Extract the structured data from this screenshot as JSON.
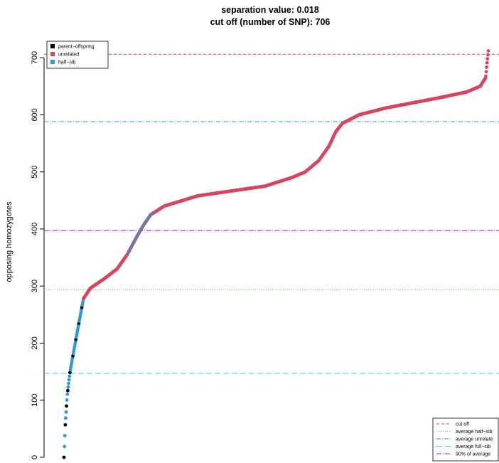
{
  "chart_data": {
    "type": "scatter",
    "title": "separation value: 0.018",
    "subtitle": "cut off (number of SNP): 706",
    "xlabel": "",
    "ylabel": "opposing homozygotes",
    "ylim": [
      -10,
      745
    ],
    "yticks": [
      0,
      100,
      200,
      300,
      400,
      500,
      600,
      700
    ],
    "n_points": 1000,
    "curve": [
      [
        1,
        0
      ],
      [
        3,
        60
      ],
      [
        6,
        110
      ],
      [
        10,
        150
      ],
      [
        20,
        215
      ],
      [
        30,
        278
      ],
      [
        40,
        296
      ],
      [
        60,
        312
      ],
      [
        80,
        330
      ],
      [
        95,
        355
      ],
      [
        110,
        388
      ],
      [
        120,
        408
      ],
      [
        130,
        425
      ],
      [
        150,
        440
      ],
      [
        200,
        458
      ],
      [
        300,
        475
      ],
      [
        340,
        490
      ],
      [
        360,
        500
      ],
      [
        380,
        520
      ],
      [
        395,
        545
      ],
      [
        405,
        570
      ],
      [
        415,
        585
      ],
      [
        440,
        600
      ],
      [
        480,
        612
      ],
      [
        560,
        630
      ],
      [
        600,
        640
      ],
      [
        620,
        650
      ],
      [
        628,
        665
      ],
      [
        630,
        690
      ],
      [
        632,
        712
      ]
    ],
    "categories": {
      "parent-offspring": {
        "color": "#000000",
        "x_until": 7
      },
      "half-sib": {
        "color": "#2E9BD6",
        "x_until": 30
      },
      "unrelated": {
        "color": "#D6465F"
      }
    },
    "lines": [
      {
        "name": "cut off",
        "y": 706,
        "color": "#D6465F",
        "dash": "4,3"
      },
      {
        "name": "average half-sib",
        "y": 293,
        "color": "#61D04F",
        "dash": "1,2"
      },
      {
        "name": "average unrelated",
        "y": 588,
        "color": "#2297E6",
        "dash": "6,2,1,2"
      },
      {
        "name": "average full-sib",
        "y": 147,
        "color": "#28E2E5",
        "dash": "8,4"
      },
      {
        "name": "90% of average",
        "y": 397,
        "color": "#CD0BBC",
        "dash": "7,2,1,2"
      }
    ],
    "legend_points": [
      {
        "label": "parent−offspring",
        "color": "#000000"
      },
      {
        "label": "unrelated",
        "color": "#D6465F"
      },
      {
        "label": "half−sib",
        "color": "#2E9BD6"
      }
    ],
    "legend_lines": [
      {
        "label": "cut off"
      },
      {
        "label": "average half−sib"
      },
      {
        "label": "average unrelate"
      },
      {
        "label": "average full−sib"
      },
      {
        "label": "90% of average"
      }
    ],
    "legend_points_position": "top-left",
    "legend_lines_position": "bottom-right",
    "grid": false
  }
}
